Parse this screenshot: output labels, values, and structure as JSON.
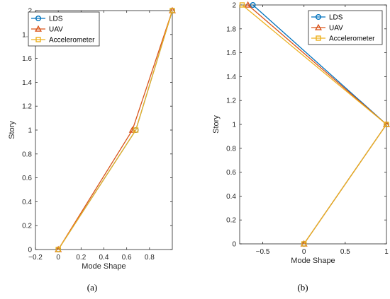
{
  "chart_data": [
    {
      "type": "line",
      "panel_label": "(a)",
      "xlabel": "Mode Shape",
      "ylabel": "Story",
      "xlim": [
        -0.2,
        1.0
      ],
      "ylim": [
        0,
        2
      ],
      "x_ticks": [
        -0.2,
        0,
        0.2,
        0.4,
        0.6,
        0.8
      ],
      "x_tick_labels": [
        "−0.2",
        "0",
        "0.2",
        "0.4",
        "0.6",
        "0.8"
      ],
      "y_ticks": [
        0,
        0.2,
        0.4,
        0.6,
        0.8,
        1,
        1.2,
        1.4,
        1.6,
        1.8,
        2
      ],
      "y_tick_labels": [
        "0",
        "0.2",
        "0.4",
        "0.6",
        "0.8",
        "1",
        "1.2",
        "1.4",
        "1.6",
        "1.8",
        "2"
      ],
      "grid": false,
      "legend_position": "top-left",
      "series": [
        {
          "name": "LDS",
          "marker": "circle",
          "color": "#0072BD",
          "points": [
            [
              0,
              0
            ],
            [
              0.68,
              1
            ],
            [
              1.0,
              2
            ]
          ]
        },
        {
          "name": "UAV",
          "marker": "triangle",
          "color": "#D95319",
          "points": [
            [
              0,
              0
            ],
            [
              0.65,
              1
            ],
            [
              1.0,
              2
            ]
          ]
        },
        {
          "name": "Accelerometer",
          "marker": "square",
          "color": "#EDB120",
          "points": [
            [
              0,
              0
            ],
            [
              0.68,
              1
            ],
            [
              1.0,
              2
            ]
          ]
        }
      ]
    },
    {
      "type": "line",
      "panel_label": "(b)",
      "xlabel": "Mode Shape",
      "ylabel": "Story",
      "xlim": [
        -0.78,
        1.0
      ],
      "ylim": [
        0,
        2
      ],
      "x_ticks": [
        -0.5,
        0,
        0.5,
        1
      ],
      "x_tick_labels": [
        "−0.5",
        "0",
        "0.5",
        "1"
      ],
      "y_ticks": [
        0,
        0.2,
        0.4,
        0.6,
        0.8,
        1,
        1.2,
        1.4,
        1.6,
        1.8,
        2
      ],
      "y_tick_labels": [
        "0",
        "0.2",
        "0.4",
        "0.6",
        "0.8",
        "1",
        "1.2",
        "1.4",
        "1.6",
        "1.8",
        "2"
      ],
      "grid": false,
      "legend_position": "top-right",
      "series": [
        {
          "name": "LDS",
          "marker": "circle",
          "color": "#0072BD",
          "points": [
            [
              0,
              0
            ],
            [
              1.0,
              1
            ],
            [
              -0.62,
              2
            ]
          ]
        },
        {
          "name": "UAV",
          "marker": "triangle",
          "color": "#D95319",
          "points": [
            [
              0,
              0
            ],
            [
              1.0,
              1
            ],
            [
              -0.68,
              2
            ]
          ]
        },
        {
          "name": "Accelerometer",
          "marker": "square",
          "color": "#EDB120",
          "points": [
            [
              0,
              0
            ],
            [
              1.0,
              1
            ],
            [
              -0.75,
              2
            ]
          ]
        }
      ]
    }
  ]
}
